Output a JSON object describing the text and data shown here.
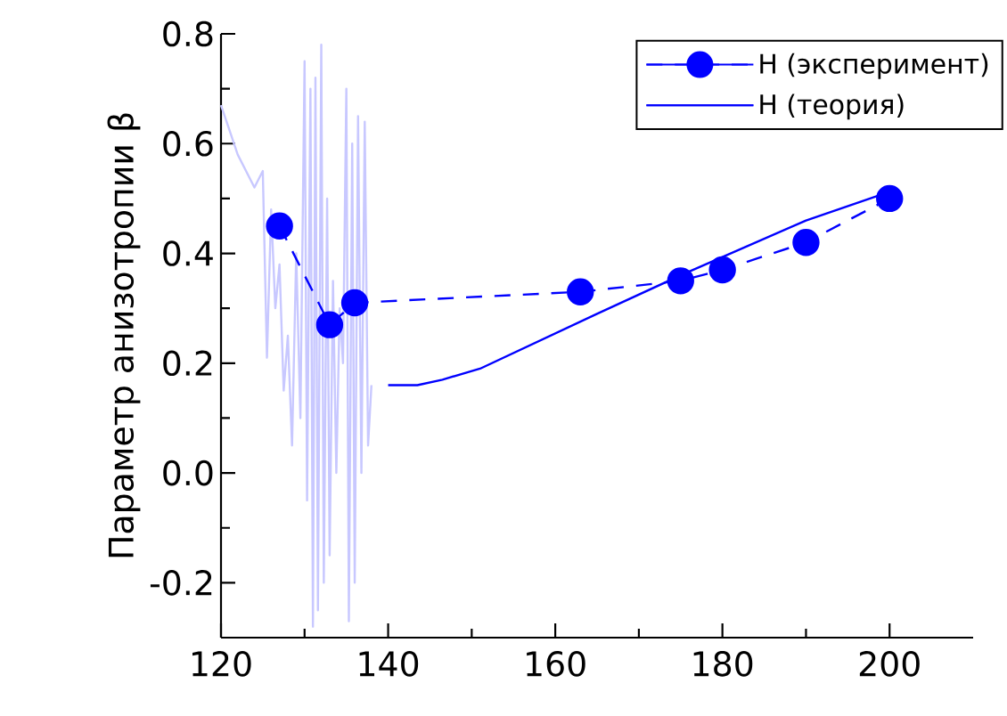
{
  "chart_data": {
    "type": "line",
    "ylabel": "Параметр анизотропии β",
    "xlim": [
      120,
      210
    ],
    "ylim": [
      -0.3,
      0.8
    ],
    "xticks": [
      120,
      140,
      160,
      180,
      200
    ],
    "yticks": [
      -0.2,
      {
        "value": 0,
        "label": "0.0"
      },
      0.2,
      0.4,
      0.6,
      0.8
    ],
    "grid": false,
    "legend": "top right",
    "series": [
      {
        "color": "#c8c8ff",
        "marker": "none",
        "line_style": "solid",
        "x": [
          120,
          122,
          124,
          125,
          125.5,
          126,
          126.5,
          127,
          127.5,
          128,
          128.5,
          129,
          129.5,
          130,
          130.3,
          130.7,
          131,
          131.3,
          131.6,
          132,
          132.3,
          132.7,
          133,
          133.4,
          133.8,
          134.2,
          134.6,
          135,
          135.3,
          135.7,
          136,
          136.4,
          136.8,
          137.2,
          137.6,
          138
        ],
        "values": [
          0.67,
          0.58,
          0.52,
          0.55,
          0.21,
          0.48,
          0.3,
          0.38,
          0.15,
          0.25,
          0.05,
          0.4,
          0.1,
          0.75,
          -0.05,
          0.7,
          -0.28,
          0.72,
          -0.25,
          0.78,
          -0.2,
          0.5,
          -0.15,
          0.35,
          0.0,
          0.3,
          0.2,
          0.7,
          -0.27,
          0.6,
          -0.2,
          0.65,
          0.0,
          0.64,
          0.05,
          0.16
        ]
      },
      {
        "name": "H (эксперимент)",
        "color": "#0000ff",
        "marker": "circle",
        "line_style": "dashed",
        "x": [
          127,
          133,
          136,
          163,
          175,
          180,
          190,
          200
        ],
        "values": [
          0.45,
          0.27,
          0.31,
          0.33,
          0.35,
          0.37,
          0.42,
          0.5
        ]
      },
      {
        "name": "H (теория)",
        "color": "#0000ff",
        "marker": "none",
        "line_style": "solid",
        "x": [
          140,
          143.5,
          146.5,
          151,
          165,
          175,
          190,
          199.6
        ],
        "values": [
          0.16,
          0.16,
          0.17,
          0.19,
          0.29,
          0.36,
          0.46,
          0.51
        ]
      }
    ]
  }
}
